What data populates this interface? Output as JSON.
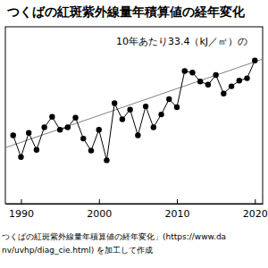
{
  "chart_data": {
    "type": "line",
    "title": "つくばの紅斑紫外線量年積算値の経年変化",
    "annotation": "10年あたり33.4（kJ／㎡）の",
    "source": [
      "つくばの紅斑紫外線量年積算値の経年変化」(https://www.da",
      "nv/uvhp/diag_cie.html) を加工して作成"
    ],
    "x": [
      1989,
      1990,
      1991,
      1992,
      1993,
      1994,
      1995,
      1996,
      1997,
      1998,
      1999,
      2000,
      2001,
      2002,
      2003,
      2004,
      2005,
      2006,
      2007,
      2008,
      2009,
      2010,
      2011,
      2012,
      2013,
      2014,
      2015,
      2016,
      2017,
      2018,
      2019,
      2020
    ],
    "series": [
      {
        "color": "#000000",
        "marker": "circle",
        "line_style": "solid",
        "values": [
          505,
          478,
          508,
          487,
          515,
          528,
          512,
          515,
          527,
          501,
          486,
          512,
          474,
          545,
          525,
          537,
          505,
          541,
          515,
          531,
          550,
          540,
          585,
          583,
          572,
          568,
          580,
          557,
          566,
          573,
          576,
          598
        ]
      }
    ],
    "trend": {
      "x": [
        1988,
        2021
      ],
      "values": [
        489.6,
        599.8
      ],
      "color": "#808080"
    },
    "xlim": [
      1988,
      2021
    ],
    "xticks": [
      1990,
      2000,
      2010,
      2020
    ],
    "ylim": [
      420,
      640
    ],
    "tick_labels": "x"
  }
}
